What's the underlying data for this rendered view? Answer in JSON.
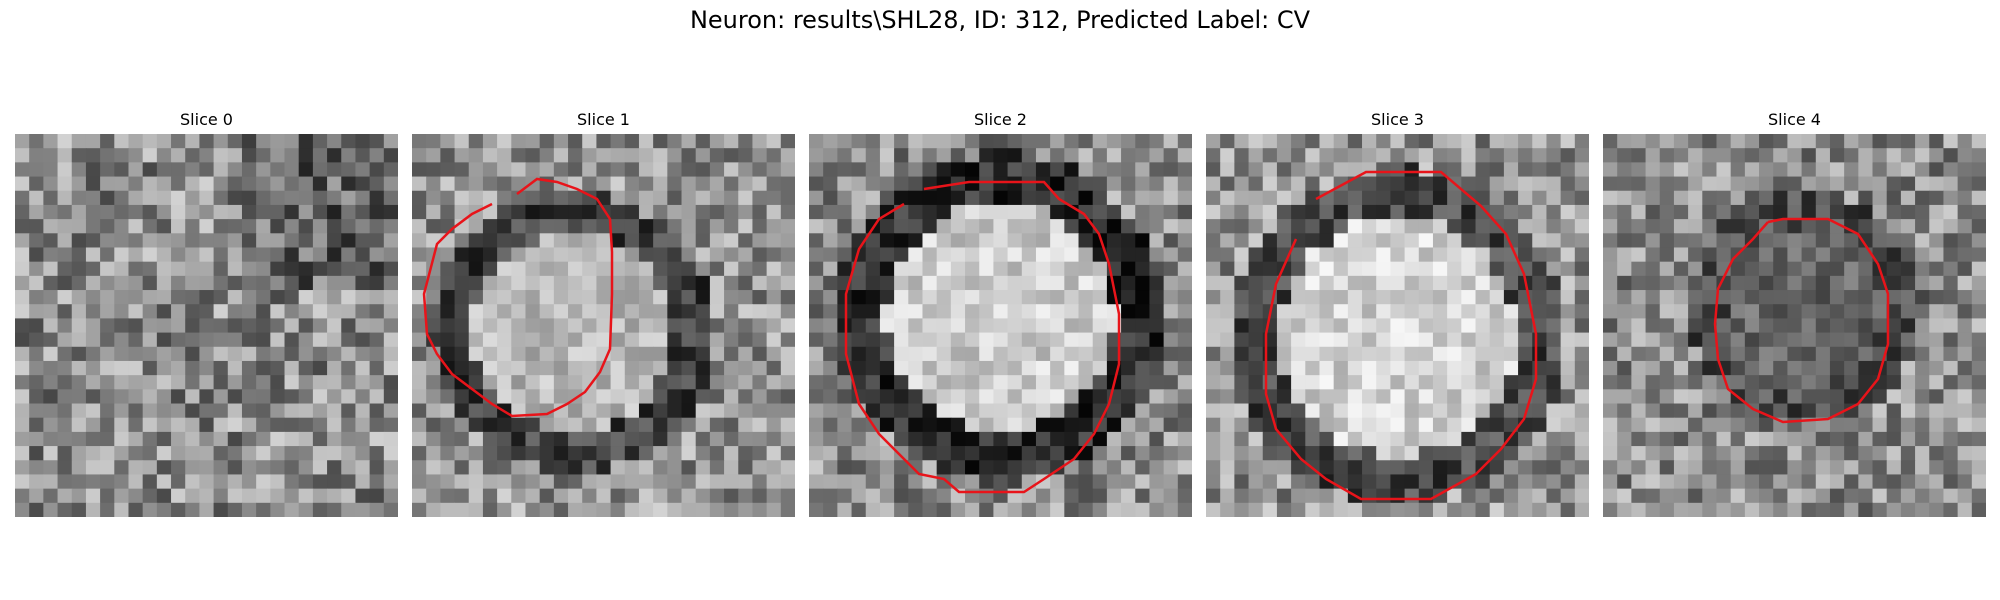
{
  "figure": {
    "title": "Neuron: results\\SHL28, ID: 312, Predicted Label: CV"
  },
  "panels": [
    {
      "title": "Slice 0",
      "has_contour": false
    },
    {
      "title": "Slice 1",
      "has_contour": true
    },
    {
      "title": "Slice 2",
      "has_contour": true
    },
    {
      "title": "Slice 3",
      "has_contour": true
    },
    {
      "title": "Slice 4",
      "has_contour": true
    }
  ],
  "colors": {
    "contour": "#e8141a",
    "background": "#ffffff"
  },
  "image": {
    "colormap": "grayscale",
    "grid_size": 27
  }
}
